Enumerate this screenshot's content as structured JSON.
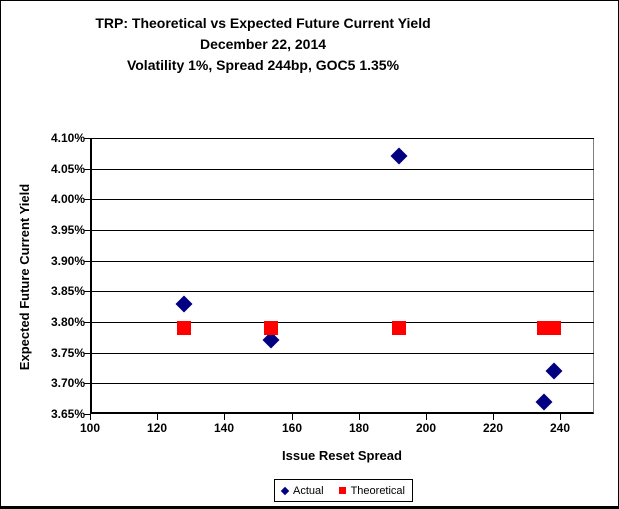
{
  "window": {
    "background": "#FFFFFF",
    "border_color": "#000000"
  },
  "chart_data": {
    "type": "scatter",
    "title_lines": [
      "TRP: Theoretical vs Expected Future Current Yield",
      "December 22, 2014",
      "Volatility 1%, Spread 244bp, GOC5 1.35%"
    ],
    "xlabel": "Issue Reset Spread",
    "ylabel": "Expected Future Current Yield",
    "xlim": [
      100,
      250
    ],
    "ylim": [
      3.65,
      4.1
    ],
    "x_ticks": [
      100,
      120,
      140,
      160,
      180,
      200,
      220,
      240
    ],
    "y_ticks": [
      4.1,
      4.05,
      4.0,
      3.95,
      3.9,
      3.85,
      3.8,
      3.75,
      3.7,
      3.65
    ],
    "y_tick_suffix": "%",
    "grid": "horizontal",
    "gridline_color": "#000000",
    "plot_border_color": "#808080",
    "legend_position": "bottom-center",
    "series": [
      {
        "name": "Actual",
        "marker": "diamond",
        "color": "#000080",
        "points": [
          {
            "x": 128,
            "y": 3.83
          },
          {
            "x": 154,
            "y": 3.77
          },
          {
            "x": 192,
            "y": 4.07
          },
          {
            "x": 235,
            "y": 3.67
          },
          {
            "x": 238,
            "y": 3.72
          }
        ]
      },
      {
        "name": "Theoretical",
        "marker": "square",
        "color": "#FF0000",
        "points": [
          {
            "x": 128,
            "y": 3.79
          },
          {
            "x": 154,
            "y": 3.79
          },
          {
            "x": 192,
            "y": 3.79
          },
          {
            "x": 235,
            "y": 3.79
          },
          {
            "x": 238,
            "y": 3.79
          }
        ]
      }
    ]
  }
}
